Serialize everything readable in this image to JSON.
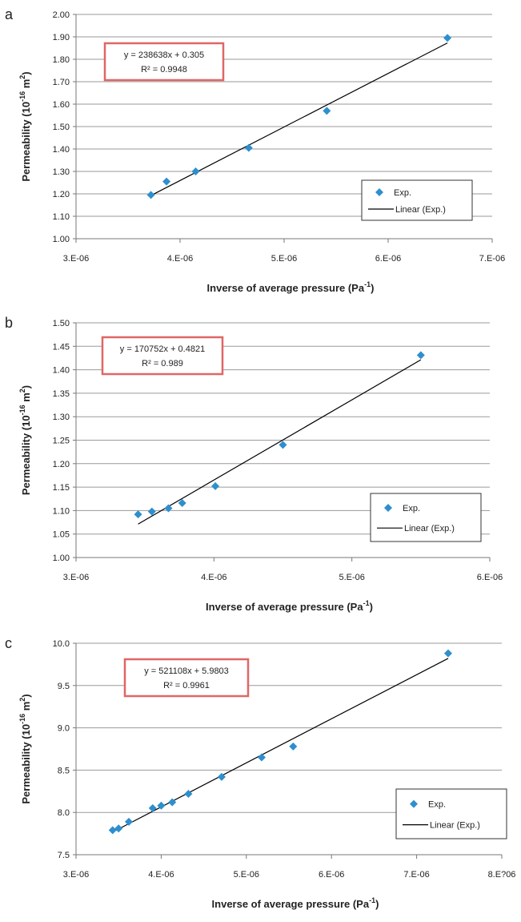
{
  "chart_data": [
    {
      "panel_label": "a",
      "type": "scatter",
      "xlabel_main": "Inverse of average pressure (Pa",
      "xlabel_sup": "-1",
      "xlabel_close": ")",
      "ylabel_main": "Permeability (10",
      "ylabel_sup1": "-16",
      "ylabel_mid": " m",
      "ylabel_sup2": "2",
      "ylabel_close": ")",
      "xlim": [
        3e-06,
        7e-06
      ],
      "ylim": [
        1.0,
        2.0
      ],
      "x_ticks": [
        3e-06,
        4e-06,
        5e-06,
        6e-06,
        7e-06
      ],
      "x_tick_labels": [
        "3.E-06",
        "4.E-06",
        "5.E-06",
        "6.E-06",
        "7.E-06"
      ],
      "y_ticks": [
        1.0,
        1.1,
        1.2,
        1.3,
        1.4,
        1.5,
        1.6,
        1.7,
        1.8,
        1.9,
        2.0
      ],
      "y_tick_labels": [
        "1.00",
        "1.10",
        "1.20",
        "1.30",
        "1.40",
        "1.50",
        "1.60",
        "1.70",
        "1.80",
        "1.90",
        "2.00"
      ],
      "grid": "horizontal",
      "series": [
        {
          "name": "Exp.",
          "marker": "diamond",
          "color": "#2e8fce",
          "x": [
            3.72e-06,
            3.87e-06,
            4.15e-06,
            4.66e-06,
            5.41e-06,
            6.57e-06
          ],
          "y": [
            1.195,
            1.255,
            1.3,
            1.405,
            1.57,
            1.895
          ]
        }
      ],
      "trendline": {
        "name": "Linear (Exp.)",
        "color": "#000000",
        "slope": 238638,
        "intercept": 0.305,
        "x_range": [
          3.72e-06,
          6.57e-06
        ],
        "equation": "y = 238638x + 0.305",
        "r2": "R² = 0.9948"
      },
      "legend_position": "bottom-right",
      "equation_box_color": "#e06666"
    },
    {
      "panel_label": "b",
      "type": "scatter",
      "xlabel_main": "Inverse of average pressure (Pa",
      "xlabel_sup": "-1",
      "xlabel_close": ")",
      "ylabel_main": "Permeability (10",
      "ylabel_sup1": "-16",
      "ylabel_mid": " m",
      "ylabel_sup2": "2",
      "ylabel_close": ")",
      "xlim": [
        3e-06,
        6e-06
      ],
      "ylim": [
        1.0,
        1.5
      ],
      "x_ticks": [
        3e-06,
        4e-06,
        5e-06,
        6e-06
      ],
      "x_tick_labels": [
        "3.E-06",
        "4.E-06",
        "5.E-06",
        "6.E-06"
      ],
      "y_ticks": [
        1.0,
        1.05,
        1.1,
        1.15,
        1.2,
        1.25,
        1.3,
        1.35,
        1.4,
        1.45,
        1.5
      ],
      "y_tick_labels": [
        "1.00",
        "1.05",
        "1.10",
        "1.15",
        "1.20",
        "1.25",
        "1.30",
        "1.35",
        "1.40",
        "1.45",
        "1.50"
      ],
      "grid": "horizontal",
      "series": [
        {
          "name": "Exp.",
          "marker": "diamond",
          "color": "#2e8fce",
          "x": [
            3.45e-06,
            3.55e-06,
            3.67e-06,
            3.77e-06,
            4.01e-06,
            4.5e-06,
            5.5e-06
          ],
          "y": [
            1.092,
            1.098,
            1.105,
            1.116,
            1.152,
            1.24,
            1.431
          ]
        }
      ],
      "trendline": {
        "name": "Linear (Exp.)",
        "color": "#000000",
        "slope": 170752,
        "intercept": 0.4821,
        "x_range": [
          3.45e-06,
          5.5e-06
        ],
        "equation": "y = 170752x + 0.4821",
        "r2": "R² = 0.989"
      },
      "legend_position": "bottom-right",
      "equation_box_color": "#e06666"
    },
    {
      "panel_label": "c",
      "type": "scatter",
      "xlabel_main": "Inverse of average pressure (Pa",
      "xlabel_sup": "-1",
      "xlabel_close": ")",
      "ylabel_main": "Permeability (10",
      "ylabel_sup1": "-16",
      "ylabel_mid": " m",
      "ylabel_sup2": "2",
      "ylabel_close": ")",
      "xlim": [
        3e-06,
        8e-06
      ],
      "ylim": [
        7.5,
        10.0
      ],
      "x_ticks": [
        3e-06,
        4e-06,
        5e-06,
        6e-06,
        7e-06,
        8e-06
      ],
      "x_tick_labels": [
        "3.E-06",
        "4.E-06",
        "5.E-06",
        "6.E-06",
        "7.E-06",
        "8.E?06"
      ],
      "y_ticks": [
        7.5,
        8.0,
        8.5,
        9.0,
        9.5,
        10.0
      ],
      "y_tick_labels": [
        "7.5",
        "8.0",
        "8.5",
        "9.0",
        "9.5",
        "10.0"
      ],
      "grid": "horizontal",
      "series": [
        {
          "name": "Exp.",
          "marker": "diamond",
          "color": "#2e8fce",
          "x": [
            3.43e-06,
            3.5e-06,
            3.62e-06,
            3.9e-06,
            4e-06,
            4.13e-06,
            4.32e-06,
            4.71e-06,
            5.18e-06,
            5.55e-06,
            7.37e-06
          ],
          "y": [
            7.79,
            7.81,
            7.89,
            8.05,
            8.08,
            8.12,
            8.22,
            8.42,
            8.65,
            8.78,
            9.88
          ]
        }
      ],
      "trendline": {
        "name": "Linear (Exp.)",
        "color": "#000000",
        "slope": 521108,
        "intercept": 5.9803,
        "x_range": [
          3.43e-06,
          7.37e-06
        ],
        "equation": "y = 521108x + 5.9803",
        "r2": "R² = 0.9961"
      },
      "legend_position": "bottom-right",
      "equation_box_color": "#e06666"
    }
  ]
}
